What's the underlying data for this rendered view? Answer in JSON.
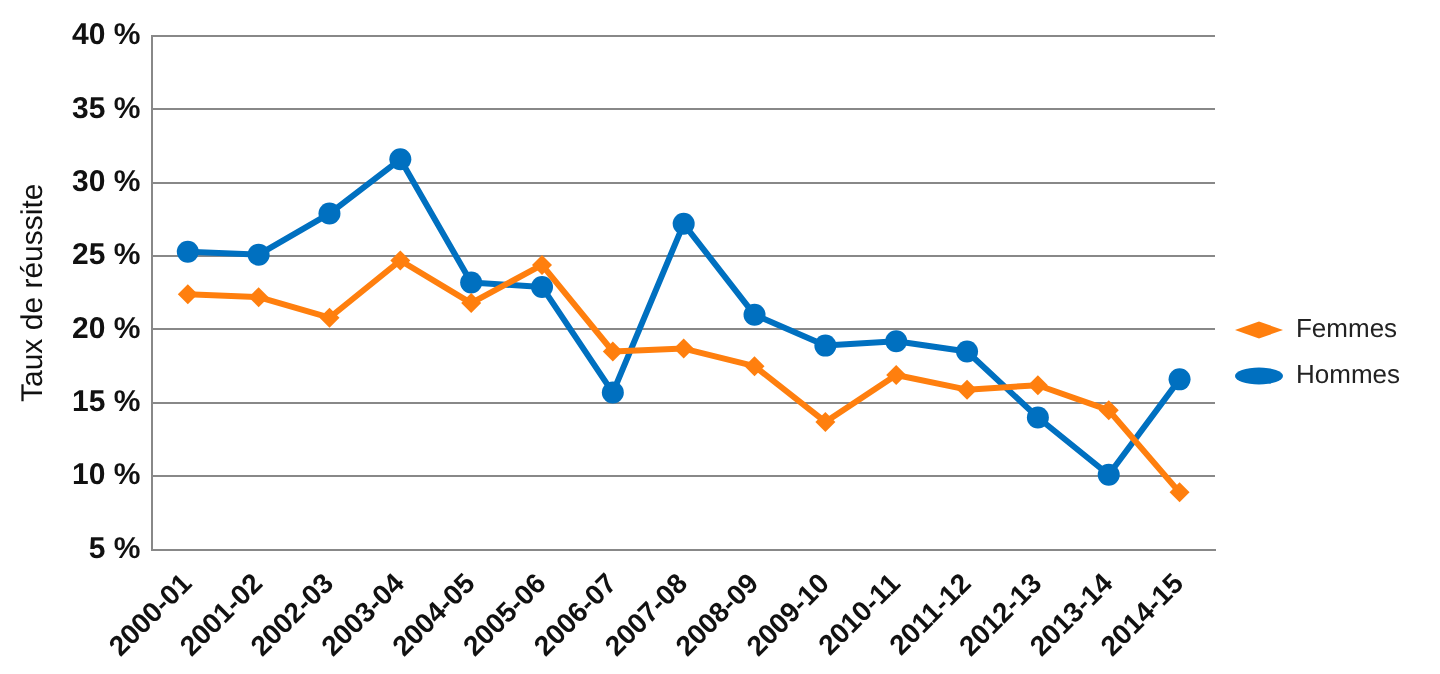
{
  "chart_data": {
    "type": "line",
    "ylabel": "Taux de réussite",
    "categories": [
      "2000-01",
      "2001-02",
      "2002-03",
      "2003-04",
      "2004-05",
      "2005-06",
      "2006-07",
      "2007-08",
      "2008-09",
      "2009-10",
      "2010-11",
      "2011-12",
      "2012-13",
      "2013-14",
      "2014-15"
    ],
    "series": [
      {
        "name": "Femmes",
        "color": "#ff7f0e",
        "marker": "diamond",
        "values": [
          22.4,
          22.2,
          20.8,
          24.7,
          21.8,
          24.4,
          18.5,
          18.7,
          17.5,
          13.7,
          16.9,
          15.9,
          16.2,
          14.5,
          8.9
        ]
      },
      {
        "name": "Hommes",
        "color": "#0070c0",
        "marker": "circle",
        "values": [
          25.3,
          25.1,
          27.9,
          31.6,
          23.2,
          22.9,
          15.7,
          27.2,
          21.0,
          18.9,
          19.2,
          18.5,
          14.0,
          10.1,
          16.6
        ]
      }
    ],
    "ylim": [
      5,
      40
    ],
    "yticks": [
      {
        "value": 5,
        "label": "5 %"
      },
      {
        "value": 10,
        "label": "10 %"
      },
      {
        "value": 15,
        "label": "15 %"
      },
      {
        "value": 20,
        "label": "20 %"
      },
      {
        "value": 25,
        "label": "25 %"
      },
      {
        "value": 30,
        "label": "30 %"
      },
      {
        "value": 35,
        "label": "35 %"
      },
      {
        "value": 40,
        "label": "40 %"
      }
    ],
    "grid": "y",
    "legend": "right",
    "line_style": "solid"
  }
}
